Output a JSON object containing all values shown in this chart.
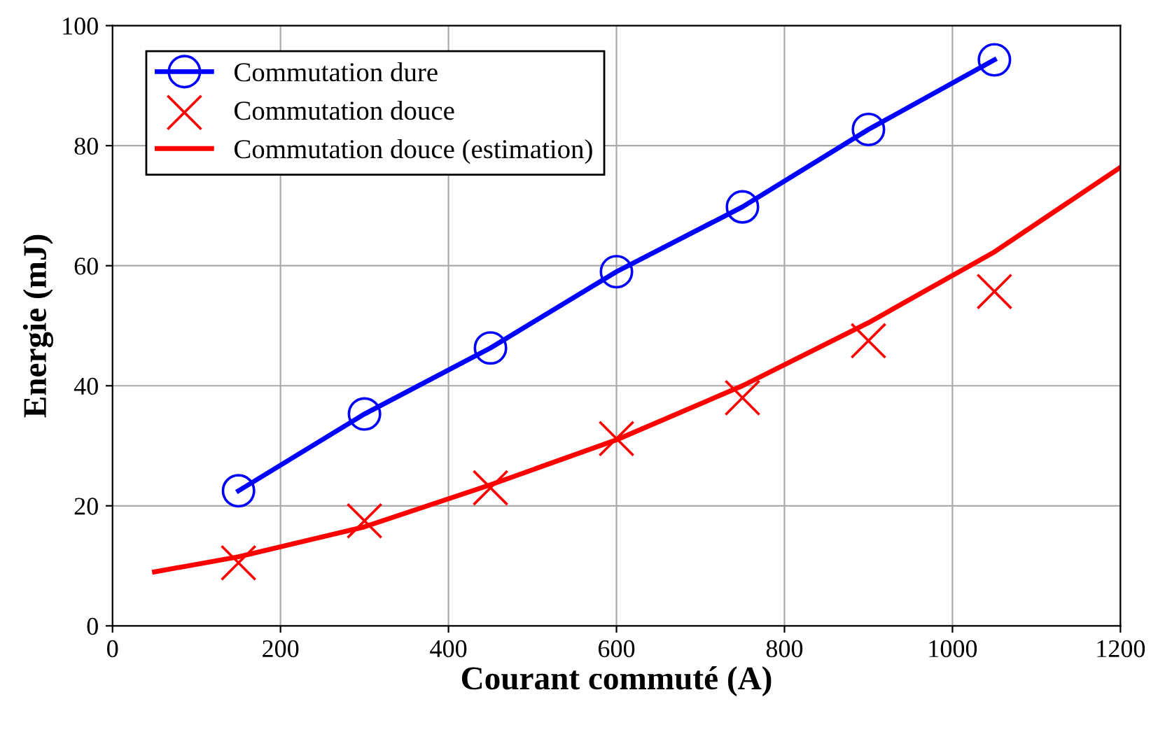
{
  "chart_data": {
    "type": "line",
    "xlabel": "Courant commuté (A)",
    "ylabel": "Energie (mJ)",
    "xlim": [
      0,
      1200
    ],
    "ylim": [
      0,
      100
    ],
    "xticks": [
      0,
      200,
      400,
      600,
      800,
      1000,
      1200
    ],
    "yticks": [
      0,
      20,
      40,
      60,
      80,
      100
    ],
    "grid": true,
    "legend": "top left",
    "series": [
      {
        "name": "Commutation dure",
        "marker": "circle",
        "color": "#0000ff",
        "x": [
          150,
          300,
          450,
          600,
          750,
          900,
          1050
        ],
        "values": [
          22.5,
          35.3,
          46.3,
          59,
          69.8,
          82.7,
          94.3
        ]
      },
      {
        "name": "Commutation douce",
        "type": "scatter",
        "marker": "cross",
        "color": "#ff0000",
        "x": [
          150,
          300,
          450,
          600,
          750,
          900,
          1050
        ],
        "values": [
          10.5,
          17.5,
          23,
          31.2,
          38,
          47.5,
          55.7
        ]
      },
      {
        "name": "Commutation douce (estimation)",
        "type": "line",
        "marker": "none",
        "color": "#ff0000",
        "x": [
          50,
          150,
          300,
          450,
          600,
          750,
          900,
          1050,
          1200
        ],
        "values": [
          9,
          11.5,
          16.5,
          23.5,
          31,
          40,
          50.5,
          62.3,
          76.4
        ]
      }
    ]
  }
}
